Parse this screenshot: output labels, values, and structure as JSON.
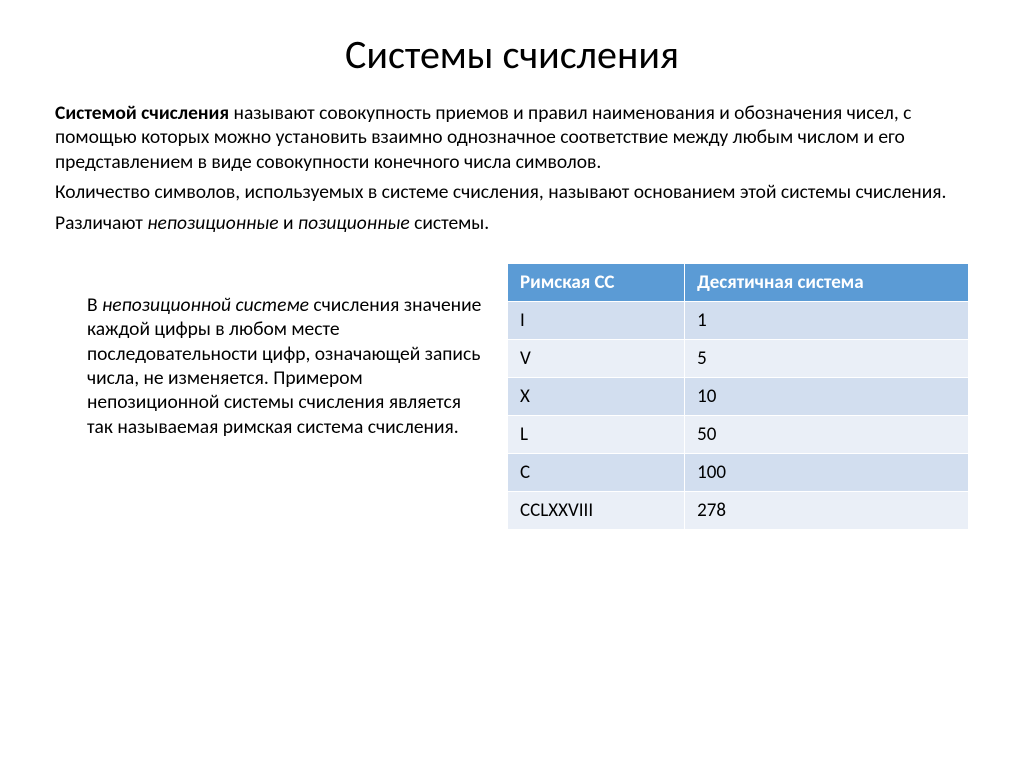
{
  "title": "Системы счисления",
  "p1_bold": "Системой счисления",
  "p1_rest": " называют совокупность приемов и правил наименования и обозначения чисел, с помощью которых можно установить взаимно однозначное соответствие между любым числом и его представлением в виде совокупности конечного числа символов.",
  "p2": "Количество символов, используемых в системе счисления, называют основанием этой системы счисления.",
  "p3_a": "Различают ",
  "p3_b": "непозиционные",
  "p3_c": " и ",
  "p3_d": "позиционные",
  "p3_e": " системы.",
  "p4_a": "В ",
  "p4_b": "непозиционной системе",
  "p4_c": " счисления значение каждой цифры в любом месте последовательности цифр, означающей запись числа, не изменяется. Примером непозиционной системы счисления является так называемая римская система счисления.",
  "table": {
    "col1": "Римская  СС",
    "col2": "Десятичная система",
    "rows": [
      {
        "r": "I",
        "d": "1"
      },
      {
        "r": "V",
        "d": "5"
      },
      {
        "r": "X",
        "d": "10"
      },
      {
        "r": "L",
        "d": "50"
      },
      {
        "r": "C",
        "d": "100"
      },
      {
        "r": "CCLXXVIII",
        "d": "278"
      }
    ],
    "header_bg": "#5b9bd5",
    "header_fg": "#ffffff",
    "row_odd_bg": "#d2deef",
    "row_even_bg": "#eaeff7",
    "border_color": "#ffffff",
    "fontsize": 19
  }
}
